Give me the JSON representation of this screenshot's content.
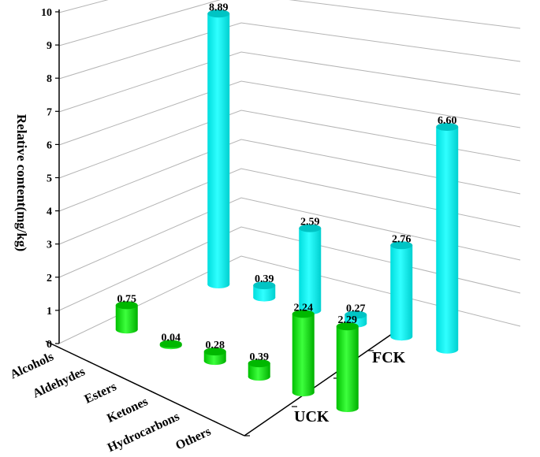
{
  "chart_data": {
    "type": "bar",
    "subtype": "3d-cylinder",
    "title": "",
    "ylabel": "Relative content(mg/kg)",
    "xlabel": "",
    "ylim": [
      0,
      10
    ],
    "yticks": [
      "0",
      "1",
      "2",
      "3",
      "4",
      "5",
      "6",
      "7",
      "8",
      "9",
      "10"
    ],
    "categories": [
      "Alcohols",
      "Aldehydes",
      "Esters",
      "Ketones",
      "Hydrocarbons",
      "Others"
    ],
    "series_axis_labels": [
      "UCK",
      "FCK"
    ],
    "grid": true,
    "series": [
      {
        "name": "UCK",
        "color": "#00e600",
        "values": [
          0.75,
          0.04,
          0.28,
          0.39,
          2.24,
          2.29
        ],
        "labels": [
          "0.75",
          "0.04",
          "0.28",
          "0.39",
          "2.24",
          "2.29"
        ]
      },
      {
        "name": "FCK",
        "color": "#00f0f0",
        "values": [
          8.89,
          0.39,
          2.59,
          0.27,
          2.76,
          6.6
        ],
        "labels": [
          "8.89",
          "0.39",
          "2.59",
          "0.27",
          "2.76",
          "6.60"
        ]
      }
    ]
  }
}
